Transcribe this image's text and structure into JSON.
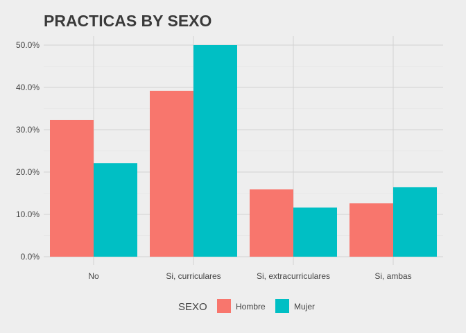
{
  "colors": {
    "background": "#eeeeee",
    "grid": "#d2d2d2",
    "text": "#444444",
    "title": "#3a3a3a"
  },
  "chart_data": {
    "type": "bar",
    "title": "PRACTICAS BY SEXO",
    "xlabel": "",
    "ylabel": "",
    "categories": [
      "No",
      "Si, curriculares",
      "Si, extracurriculares",
      "Si, ambas"
    ],
    "series": [
      {
        "name": "Hombre",
        "color": "#f8766d",
        "values": [
          32.3,
          39.2,
          15.9,
          12.6
        ]
      },
      {
        "name": "Mujer",
        "color": "#00bfc4",
        "values": [
          22.1,
          50.0,
          11.6,
          16.4
        ]
      }
    ],
    "ylim": [
      0,
      50
    ],
    "yticks": [
      0,
      10,
      20,
      30,
      40,
      50
    ],
    "ytick_labels": [
      "0.0%",
      "10.0%",
      "20.0%",
      "30.0%",
      "40.0%",
      "50.0%"
    ],
    "grid": true,
    "legend": {
      "title": "SEXO",
      "position": "bottom"
    }
  }
}
